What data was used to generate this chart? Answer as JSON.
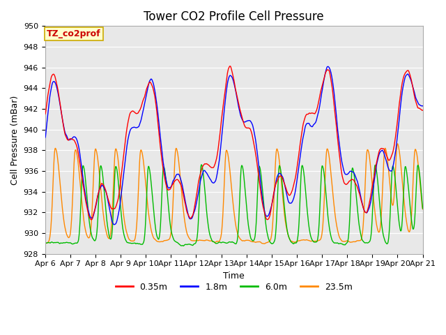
{
  "title": "Tower CO2 Profile Cell Pressure",
  "xlabel": "Time",
  "ylabel": "Cell Pressure (mBar)",
  "ylim": [
    928,
    950
  ],
  "xlim": [
    0,
    15
  ],
  "xtick_labels": [
    "Apr 6",
    "Apr 7",
    "Apr 8",
    "Apr 9",
    "Apr 10",
    "Apr 11",
    "Apr 12",
    "Apr 13",
    "Apr 14",
    "Apr 15",
    "Apr 16",
    "Apr 17",
    "Apr 18",
    "Apr 19",
    "Apr 20",
    "Apr 21"
  ],
  "series_labels": [
    "0.35m",
    "1.8m",
    "6.0m",
    "23.5m"
  ],
  "series_colors": [
    "#ff0000",
    "#0000ff",
    "#00bb00",
    "#ff8800"
  ],
  "annotation_text": "TZ_co2prof",
  "annotation_bg": "#ffffcc",
  "annotation_border": "#ccaa00",
  "annotation_color": "#cc0000",
  "fig_bg": "#ffffff",
  "plot_bg": "#e8e8e8",
  "title_fontsize": 12,
  "axis_fontsize": 9,
  "tick_fontsize": 8,
  "legend_fontsize": 9,
  "linewidth": 1.0
}
